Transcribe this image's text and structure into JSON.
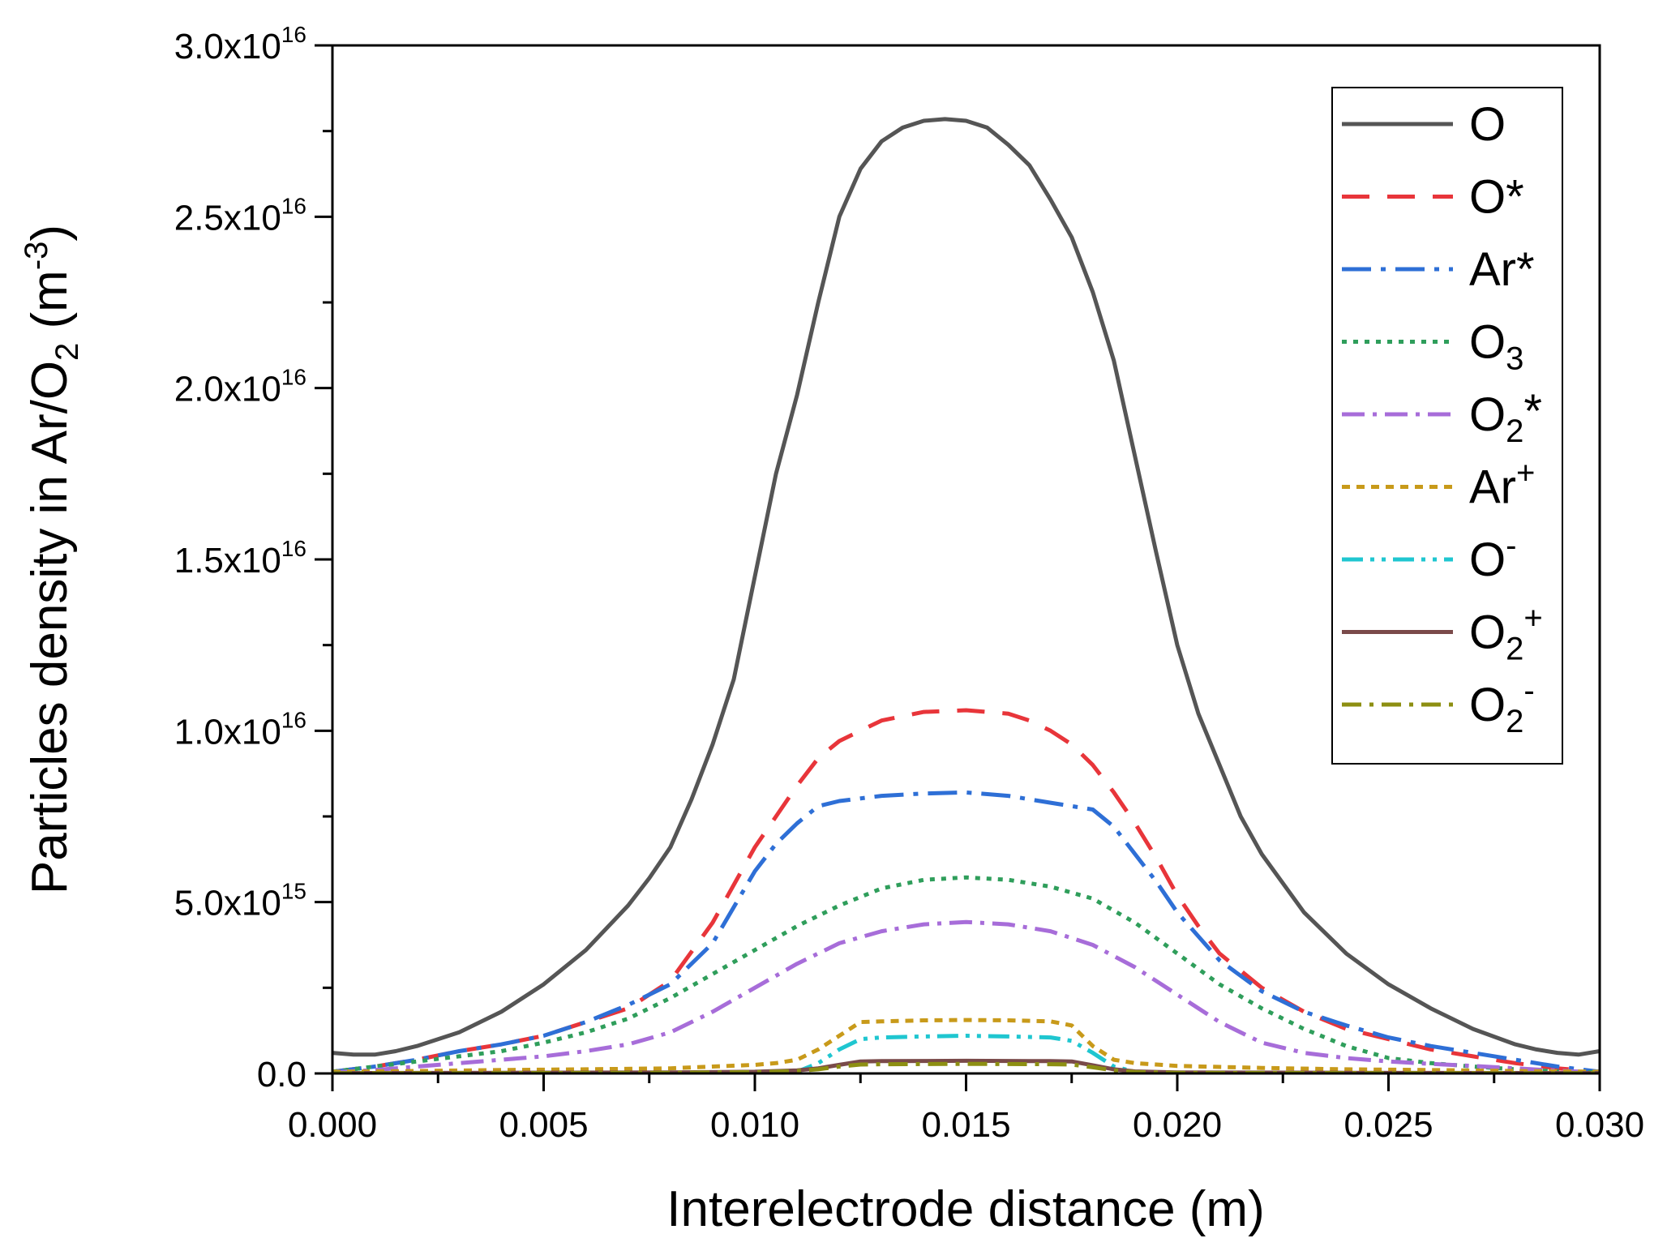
{
  "chart_data": {
    "type": "line",
    "title": "",
    "xlabel": "Interelectrode distance (m)",
    "ylabel": {
      "prefix": "Particles density in Ar/O",
      "sub": "2",
      "unit_open": " (m",
      "unit_sup": "-3",
      "unit_close": ")"
    },
    "xlim": [
      0,
      0.03
    ],
    "ylim": [
      0,
      3e+16
    ],
    "x_ticks": [
      {
        "value": 0.0,
        "label": "0.000"
      },
      {
        "value": 0.005,
        "label": "0.005"
      },
      {
        "value": 0.01,
        "label": "0.010"
      },
      {
        "value": 0.015,
        "label": "0.015"
      },
      {
        "value": 0.02,
        "label": "0.020"
      },
      {
        "value": 0.025,
        "label": "0.025"
      },
      {
        "value": 0.03,
        "label": "0.030"
      }
    ],
    "y_ticks": [
      {
        "value": 0,
        "mantissa": "0.0",
        "exp": ""
      },
      {
        "value": 5000000000000000.0,
        "mantissa": "5.0x10",
        "exp": "15"
      },
      {
        "value": 1e+16,
        "mantissa": "1.0x10",
        "exp": "16"
      },
      {
        "value": 1.5e+16,
        "mantissa": "1.5x10",
        "exp": "16"
      },
      {
        "value": 2e+16,
        "mantissa": "2.0x10",
        "exp": "16"
      },
      {
        "value": 2.5e+16,
        "mantissa": "2.5x10",
        "exp": "16"
      },
      {
        "value": 3e+16,
        "mantissa": "3.0x10",
        "exp": "16"
      }
    ],
    "legend_position": "top-right",
    "series": [
      {
        "name": "O",
        "base": "O",
        "sub": "",
        "sup": "",
        "color": "#555555",
        "dash": "",
        "width": 5,
        "x": [
          0,
          0.0005,
          0.001,
          0.0015,
          0.002,
          0.003,
          0.004,
          0.005,
          0.006,
          0.007,
          0.0075,
          0.008,
          0.0085,
          0.009,
          0.0095,
          0.01,
          0.0105,
          0.011,
          0.0115,
          0.012,
          0.0125,
          0.013,
          0.0135,
          0.014,
          0.0145,
          0.015,
          0.0155,
          0.016,
          0.0165,
          0.017,
          0.0175,
          0.018,
          0.0185,
          0.019,
          0.0195,
          0.02,
          0.0205,
          0.021,
          0.0215,
          0.022,
          0.023,
          0.024,
          0.025,
          0.026,
          0.027,
          0.028,
          0.0285,
          0.029,
          0.0295,
          0.03
        ],
        "y": [
          600000000000000.0,
          550000000000000.0,
          550000000000000.0,
          650000000000000.0,
          800000000000000.0,
          1200000000000000.0,
          1800000000000000.0,
          2600000000000000.0,
          3600000000000000.0,
          4900000000000000.0,
          5700000000000000.0,
          6600000000000000.0,
          8000000000000000.0,
          9600000000000000.0,
          1.15e+16,
          1.45e+16,
          1.75e+16,
          1.98e+16,
          2.25e+16,
          2.5e+16,
          2.64e+16,
          2.72e+16,
          2.76e+16,
          2.78e+16,
          2.785e+16,
          2.78e+16,
          2.76e+16,
          2.71e+16,
          2.65e+16,
          2.55e+16,
          2.44e+16,
          2.28e+16,
          2.08e+16,
          1.8e+16,
          1.52e+16,
          1.25e+16,
          1.05e+16,
          9000000000000000.0,
          7500000000000000.0,
          6400000000000000.0,
          4700000000000000.0,
          3500000000000000.0,
          2600000000000000.0,
          1900000000000000.0,
          1300000000000000.0,
          850000000000000.0,
          700000000000000.0,
          600000000000000.0,
          550000000000000.0,
          650000000000000.0
        ]
      },
      {
        "name": "O*",
        "base": "O*",
        "sub": "",
        "sup": "",
        "color": "#e8353a",
        "dash": "34,22",
        "width": 5,
        "x": [
          0,
          0.001,
          0.002,
          0.003,
          0.004,
          0.005,
          0.006,
          0.007,
          0.008,
          0.009,
          0.01,
          0.0105,
          0.011,
          0.0115,
          0.012,
          0.0125,
          0.013,
          0.014,
          0.015,
          0.016,
          0.0165,
          0.017,
          0.0175,
          0.018,
          0.0185,
          0.019,
          0.0195,
          0.02,
          0.0205,
          0.021,
          0.022,
          0.023,
          0.024,
          0.025,
          0.026,
          0.027,
          0.028,
          0.029,
          0.03
        ],
        "y": [
          50000000000000.0,
          200000000000000.0,
          400000000000000.0,
          650000000000000.0,
          850000000000000.0,
          1100000000000000.0,
          1500000000000000.0,
          1900000000000000.0,
          2700000000000000.0,
          4400000000000000.0,
          6600000000000000.0,
          7500000000000000.0,
          8400000000000000.0,
          9200000000000000.0,
          9700000000000000.0,
          1e+16,
          1.03e+16,
          1.055e+16,
          1.06e+16,
          1.05e+16,
          1.03e+16,
          1e+16,
          9600000000000000.0,
          9000000000000000.0,
          8200000000000000.0,
          7300000000000000.0,
          6300000000000000.0,
          5200000000000000.0,
          4300000000000000.0,
          3500000000000000.0,
          2500000000000000.0,
          1800000000000000.0,
          1300000000000000.0,
          1000000000000000.0,
          700000000000000.0,
          500000000000000.0,
          300000000000000.0,
          150000000000000.0,
          50000000000000.0
        ]
      },
      {
        "name": "Ar*",
        "base": "Ar*",
        "sub": "",
        "sup": "",
        "color": "#2e6fd6",
        "dash": "36,12,6,12",
        "width": 5,
        "x": [
          0,
          0.001,
          0.002,
          0.003,
          0.004,
          0.005,
          0.006,
          0.007,
          0.008,
          0.009,
          0.01,
          0.0105,
          0.011,
          0.0115,
          0.012,
          0.013,
          0.014,
          0.015,
          0.016,
          0.017,
          0.018,
          0.0185,
          0.019,
          0.0195,
          0.02,
          0.0205,
          0.021,
          0.022,
          0.023,
          0.024,
          0.025,
          0.026,
          0.027,
          0.028,
          0.029,
          0.03
        ],
        "y": [
          50000000000000.0,
          200000000000000.0,
          400000000000000.0,
          650000000000000.0,
          850000000000000.0,
          1100000000000000.0,
          1500000000000000.0,
          2000000000000000.0,
          2600000000000000.0,
          3800000000000000.0,
          5900000000000000.0,
          6700000000000000.0,
          7300000000000000.0,
          7800000000000000.0,
          7950000000000000.0,
          8100000000000000.0,
          8170000000000000.0,
          8200000000000000.0,
          8100000000000000.0,
          7900000000000000.0,
          7700000000000000.0,
          7200000000000000.0,
          6400000000000000.0,
          5600000000000000.0,
          4700000000000000.0,
          4000000000000000.0,
          3300000000000000.0,
          2400000000000000.0,
          1800000000000000.0,
          1400000000000000.0,
          1050000000000000.0,
          800000000000000.0,
          600000000000000.0,
          400000000000000.0,
          200000000000000.0,
          50000000000000.0
        ]
      },
      {
        "name": "O3",
        "base": "O",
        "sub": "3",
        "sup": "",
        "color": "#2f9e5b",
        "dash": "6,8",
        "width": 5,
        "x": [
          0,
          0.001,
          0.002,
          0.003,
          0.004,
          0.005,
          0.006,
          0.007,
          0.008,
          0.009,
          0.01,
          0.011,
          0.012,
          0.013,
          0.014,
          0.015,
          0.016,
          0.017,
          0.018,
          0.019,
          0.02,
          0.021,
          0.022,
          0.023,
          0.024,
          0.025,
          0.026,
          0.027,
          0.028,
          0.029,
          0.03
        ],
        "y": [
          50000000000000.0,
          200000000000000.0,
          350000000000000.0,
          500000000000000.0,
          650000000000000.0,
          900000000000000.0,
          1200000000000000.0,
          1600000000000000.0,
          2200000000000000.0,
          2900000000000000.0,
          3600000000000000.0,
          4300000000000000.0,
          4900000000000000.0,
          5400000000000000.0,
          5650000000000000.0,
          5720000000000000.0,
          5650000000000000.0,
          5450000000000000.0,
          5100000000000000.0,
          4400000000000000.0,
          3500000000000000.0,
          2600000000000000.0,
          1900000000000000.0,
          1300000000000000.0,
          800000000000000.0,
          450000000000000.0,
          300000000000000.0,
          200000000000000.0,
          120000000000000.0,
          60000000000000.0,
          30000000000000.0
        ]
      },
      {
        "name": "O2*",
        "base": "O",
        "sub": "2",
        "sup": "*",
        "color": "#a76dd9",
        "dash": "28,10,5,10",
        "width": 5,
        "x": [
          0,
          0.001,
          0.002,
          0.003,
          0.004,
          0.005,
          0.006,
          0.007,
          0.008,
          0.009,
          0.01,
          0.011,
          0.012,
          0.013,
          0.014,
          0.015,
          0.016,
          0.017,
          0.018,
          0.019,
          0.02,
          0.021,
          0.022,
          0.023,
          0.024,
          0.025,
          0.026,
          0.027,
          0.028,
          0.029,
          0.03
        ],
        "y": [
          30000000000000.0,
          100000000000000.0,
          200000000000000.0,
          300000000000000.0,
          400000000000000.0,
          500000000000000.0,
          650000000000000.0,
          850000000000000.0,
          1200000000000000.0,
          1800000000000000.0,
          2500000000000000.0,
          3200000000000000.0,
          3800000000000000.0,
          4150000000000000.0,
          4350000000000000.0,
          4420000000000000.0,
          4350000000000000.0,
          4150000000000000.0,
          3750000000000000.0,
          3100000000000000.0,
          2300000000000000.0,
          1500000000000000.0,
          900000000000000.0,
          600000000000000.0,
          450000000000000.0,
          350000000000000.0,
          280000000000000.0,
          220000000000000.0,
          150000000000000.0,
          80000000000000.0,
          30000000000000.0
        ]
      },
      {
        "name": "Ar+",
        "base": "Ar",
        "sub": "",
        "sup": "+",
        "color": "#c89a1a",
        "dash": "10,8",
        "width": 5,
        "x": [
          0,
          0.002,
          0.004,
          0.006,
          0.008,
          0.009,
          0.01,
          0.0105,
          0.011,
          0.0115,
          0.012,
          0.0125,
          0.013,
          0.014,
          0.015,
          0.016,
          0.017,
          0.0175,
          0.018,
          0.0185,
          0.019,
          0.02,
          0.022,
          0.024,
          0.026,
          0.028,
          0.03
        ],
        "y": [
          50000000000000.0,
          70000000000000.0,
          100000000000000.0,
          120000000000000.0,
          150000000000000.0,
          200000000000000.0,
          250000000000000.0,
          300000000000000.0,
          400000000000000.0,
          700000000000000.0,
          1100000000000000.0,
          1500000000000000.0,
          1520000000000000.0,
          1550000000000000.0,
          1560000000000000.0,
          1550000000000000.0,
          1520000000000000.0,
          1400000000000000.0,
          800000000000000.0,
          400000000000000.0,
          300000000000000.0,
          220000000000000.0,
          160000000000000.0,
          120000000000000.0,
          100000000000000.0,
          70000000000000.0,
          50000000000000.0
        ]
      },
      {
        "name": "O-",
        "base": "O",
        "sub": "",
        "sup": "-",
        "color": "#1fc6d0",
        "dash": "26,9,5,9,5,9",
        "width": 5,
        "x": [
          0,
          0.004,
          0.008,
          0.01,
          0.011,
          0.0115,
          0.012,
          0.0125,
          0.013,
          0.014,
          0.015,
          0.016,
          0.017,
          0.0175,
          0.018,
          0.0185,
          0.019,
          0.02,
          0.024,
          0.03
        ],
        "y": [
          10000000000000.0,
          10000000000000.0,
          10000000000000.0,
          20000000000000.0,
          50000000000000.0,
          300000000000000.0,
          700000000000000.0,
          1000000000000000.0,
          1050000000000000.0,
          1080000000000000.0,
          1100000000000000.0,
          1080000000000000.0,
          1050000000000000.0,
          950000000000000.0,
          600000000000000.0,
          200000000000000.0,
          50000000000000.0,
          20000000000000.0,
          10000000000000.0,
          10000000000000.0
        ]
      },
      {
        "name": "O2+",
        "base": "O",
        "sub": "2",
        "sup": "+",
        "color": "#7a4a4a",
        "dash": "",
        "width": 5,
        "x": [
          0,
          0.004,
          0.008,
          0.01,
          0.011,
          0.0115,
          0.012,
          0.0125,
          0.013,
          0.014,
          0.015,
          0.016,
          0.017,
          0.0175,
          0.018,
          0.0185,
          0.019,
          0.02,
          0.024,
          0.03
        ],
        "y": [
          10000000000000.0,
          20000000000000.0,
          30000000000000.0,
          50000000000000.0,
          90000000000000.0,
          150000000000000.0,
          250000000000000.0,
          350000000000000.0,
          360000000000000.0,
          365000000000000.0,
          370000000000000.0,
          365000000000000.0,
          360000000000000.0,
          350000000000000.0,
          240000000000000.0,
          120000000000000.0,
          60000000000000.0,
          30000000000000.0,
          20000000000000.0,
          10000000000000.0
        ]
      },
      {
        "name": "O2-",
        "base": "O",
        "sub": "2",
        "sup": "-",
        "color": "#8d8f12",
        "dash": "24,10,5,10",
        "width": 5,
        "x": [
          0,
          0.004,
          0.008,
          0.01,
          0.011,
          0.0115,
          0.012,
          0.0125,
          0.013,
          0.014,
          0.015,
          0.016,
          0.017,
          0.0175,
          0.018,
          0.0185,
          0.019,
          0.02,
          0.024,
          0.03
        ],
        "y": [
          5000000000000.0,
          10000000000000.0,
          20000000000000.0,
          40000000000000.0,
          70000000000000.0,
          120000000000000.0,
          200000000000000.0,
          260000000000000.0,
          270000000000000.0,
          275000000000000.0,
          280000000000000.0,
          275000000000000.0,
          270000000000000.0,
          260000000000000.0,
          180000000000000.0,
          90000000000000.0,
          40000000000000.0,
          20000000000000.0,
          10000000000000.0,
          5000000000000.0
        ]
      }
    ]
  }
}
